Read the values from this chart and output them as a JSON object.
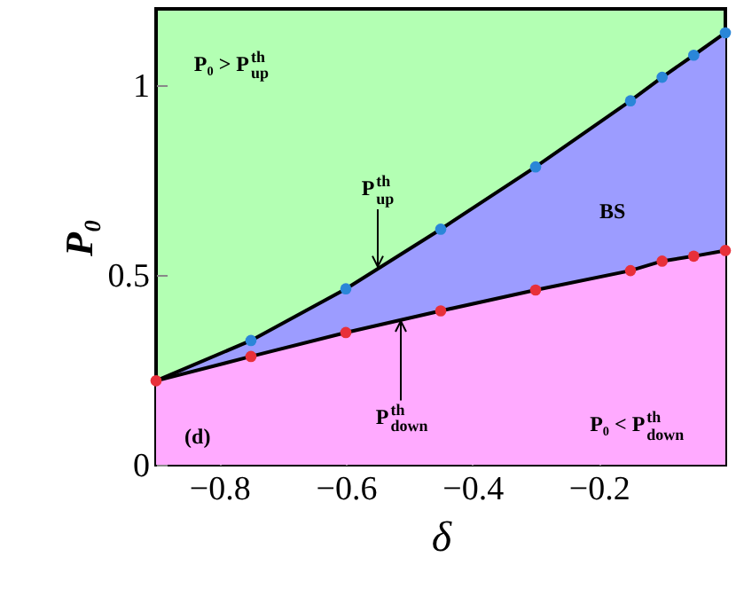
{
  "chart_data": {
    "type": "area",
    "xlabel": "δ",
    "ylabel": "P₀",
    "x": [
      -0.9,
      -0.75,
      -0.6,
      -0.45,
      -0.3,
      -0.15,
      -0.1,
      -0.05,
      0
    ],
    "series": [
      {
        "color": "#9c9cff",
        "marker": "none",
        "values": [
          0.221,
          0.327,
          0.463,
          0.62,
          0.784,
          0.958,
          1.02,
          1.078,
          1.137
        ]
      },
      {
        "color": "#ffaaff",
        "marker": "none",
        "values": [
          0.221,
          0.285,
          0.348,
          0.405,
          0.46,
          0.511,
          0.536,
          0.549,
          0.564
        ]
      },
      {
        "type": "scatter",
        "color": "#2a86d8",
        "values": [
          null,
          0.327,
          0.463,
          0.62,
          0.784,
          0.958,
          1.02,
          1.078,
          1.137
        ]
      },
      {
        "type": "scatter",
        "color": "#e8303a",
        "values": [
          0.221,
          0.285,
          0.348,
          0.405,
          0.46,
          0.511,
          0.536,
          0.549,
          0.564
        ]
      }
    ],
    "xlim": [
      -0.9,
      0
    ],
    "ylim": [
      0,
      1.2
    ],
    "xticks": [
      -0.8,
      -0.6,
      -0.4,
      -0.2
    ],
    "yticks": [
      0,
      0.5,
      1
    ],
    "marker": "circle",
    "grid": false,
    "annotations": [
      "(d)",
      "P₀ > P$^{th}$$_{up}$",
      {
        "text": "P$^{th}$$_{up}$",
        "x": -0.55,
        "y": 0.52
      },
      {
        "text": "P$^{th}$$_{down}$",
        "x": -0.512,
        "y": 0.378
      },
      "BS",
      "P₀ < P$^{th}$$_{down}$"
    ]
  }
}
